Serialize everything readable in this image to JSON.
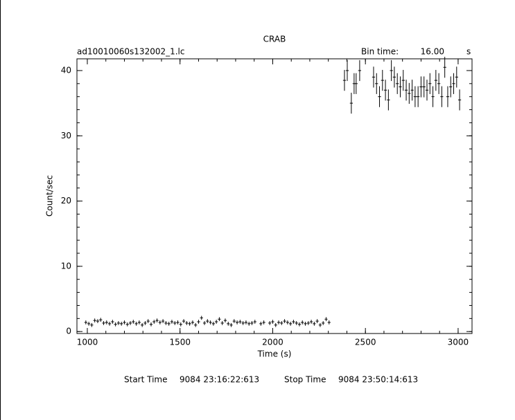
{
  "chart_data": {
    "type": "errorbar",
    "title": "CRAB",
    "subtitle": "ad10010060s132002_1.lc",
    "bin_time_label": "Bin time:",
    "bin_time": {
      "value": 16,
      "label": "16.00"
    },
    "bin_time_unit": "s",
    "x_label": "Time (s)",
    "y_label": "Count/sec",
    "start_label": "Start Time",
    "start_value": "9084 23:16:22:613",
    "stop_label": "Stop Time",
    "stop_value": "9084 23:50:14:613",
    "xlim": [
      944,
      3075
    ],
    "ylim": [
      -0.3,
      41.8
    ],
    "xticks": [
      1000,
      1500,
      2000,
      2500,
      3000
    ],
    "yticks": [
      0,
      10,
      20,
      30,
      40
    ],
    "xminorticks": [
      1000,
      1100,
      1200,
      1300,
      1400,
      1500,
      1600,
      1700,
      1800,
      1900,
      2000,
      2100,
      2200,
      2300,
      2400,
      2500,
      2600,
      2700,
      2800,
      2900,
      3000
    ],
    "yminorticks": [
      0,
      2,
      4,
      6,
      8,
      10,
      12,
      14,
      16,
      18,
      20,
      22,
      24,
      26,
      28,
      30,
      32,
      34,
      36,
      38,
      40
    ],
    "series": [
      {
        "color": "#000000",
        "x": [
          992,
          1008,
          1024,
          1040,
          1056,
          1072,
          1088,
          1104,
          1120,
          1136,
          1152,
          1168,
          1184,
          1200,
          1216,
          1232,
          1248,
          1264,
          1280,
          1296,
          1312,
          1328,
          1344,
          1360,
          1376,
          1392,
          1408,
          1424,
          1440,
          1456,
          1472,
          1488,
          1504,
          1520,
          1536,
          1552,
          1568,
          1584,
          1600,
          1616,
          1632,
          1648,
          1664,
          1680,
          1696,
          1712,
          1728,
          1744,
          1760,
          1776,
          1792,
          1808,
          1824,
          1840,
          1856,
          1872,
          1888,
          1904,
          1936,
          1952,
          1984,
          2000,
          2016,
          2032,
          2048,
          2064,
          2080,
          2096,
          2112,
          2128,
          2144,
          2160,
          2176,
          2192,
          2208,
          2224,
          2240,
          2256,
          2272,
          2288,
          2304,
          2387,
          2402,
          2424,
          2439,
          2450,
          2469,
          2544,
          2560,
          2576,
          2592,
          2608,
          2624,
          2640,
          2656,
          2672,
          2688,
          2704,
          2720,
          2736,
          2752,
          2768,
          2784,
          2800,
          2816,
          2832,
          2848,
          2864,
          2880,
          2896,
          2912,
          2928,
          2944,
          2960,
          2976,
          2992,
          3008
        ],
        "values": [
          1.4,
          1.2,
          1.0,
          1.7,
          1.6,
          1.8,
          1.3,
          1.4,
          1.2,
          1.5,
          1.1,
          1.3,
          1.2,
          1.4,
          1.1,
          1.3,
          1.5,
          1.2,
          1.4,
          1.0,
          1.3,
          1.6,
          1.1,
          1.5,
          1.7,
          1.4,
          1.6,
          1.3,
          1.2,
          1.5,
          1.3,
          1.4,
          1.1,
          1.6,
          1.3,
          1.2,
          1.4,
          1.0,
          1.5,
          2.1,
          1.3,
          1.6,
          1.4,
          1.2,
          1.5,
          1.9,
          1.3,
          1.7,
          1.2,
          1.0,
          1.6,
          1.4,
          1.5,
          1.3,
          1.4,
          1.2,
          1.3,
          1.5,
          1.2,
          1.4,
          1.3,
          1.5,
          1.0,
          1.4,
          1.3,
          1.6,
          1.4,
          1.2,
          1.5,
          1.3,
          1.1,
          1.4,
          1.2,
          1.3,
          1.5,
          1.2,
          1.6,
          1.0,
          1.3,
          1.9,
          1.4,
          38.5,
          40,
          35,
          38,
          38,
          40,
          39,
          38,
          36,
          38.5,
          37,
          35.5,
          40,
          39,
          38,
          37.5,
          38.5,
          37,
          36.5,
          37,
          36,
          36,
          37.5,
          37.5,
          37,
          38,
          36,
          38.5,
          38,
          36,
          40.5,
          36,
          37.5,
          38,
          39,
          35.5
        ],
        "errors": [
          0.3,
          0.3,
          0.3,
          0.3,
          0.3,
          0.3,
          0.3,
          0.3,
          0.3,
          0.3,
          0.3,
          0.3,
          0.3,
          0.3,
          0.3,
          0.3,
          0.3,
          0.3,
          0.3,
          0.3,
          0.3,
          0.3,
          0.3,
          0.3,
          0.3,
          0.3,
          0.3,
          0.3,
          0.3,
          0.3,
          0.3,
          0.3,
          0.3,
          0.3,
          0.3,
          0.3,
          0.3,
          0.3,
          0.3,
          0.3,
          0.3,
          0.3,
          0.3,
          0.3,
          0.3,
          0.3,
          0.3,
          0.3,
          0.3,
          0.3,
          0.3,
          0.3,
          0.3,
          0.3,
          0.3,
          0.3,
          0.3,
          0.3,
          0.3,
          0.3,
          0.3,
          0.3,
          0.3,
          0.3,
          0.3,
          0.3,
          0.3,
          0.3,
          0.3,
          0.3,
          0.3,
          0.3,
          0.3,
          0.3,
          0.3,
          0.3,
          0.3,
          0.3,
          0.3,
          0.3,
          0.3,
          1.6,
          1.6,
          1.6,
          1.6,
          1.6,
          1.6,
          1.6,
          1.6,
          1.6,
          1.6,
          1.6,
          1.6,
          1.6,
          1.6,
          1.6,
          1.6,
          1.6,
          1.6,
          1.6,
          1.6,
          1.6,
          1.6,
          1.6,
          1.6,
          1.6,
          1.6,
          1.6,
          1.6,
          1.6,
          1.6,
          1.6,
          1.6,
          1.6,
          1.6,
          1.6,
          1.6
        ]
      }
    ]
  }
}
